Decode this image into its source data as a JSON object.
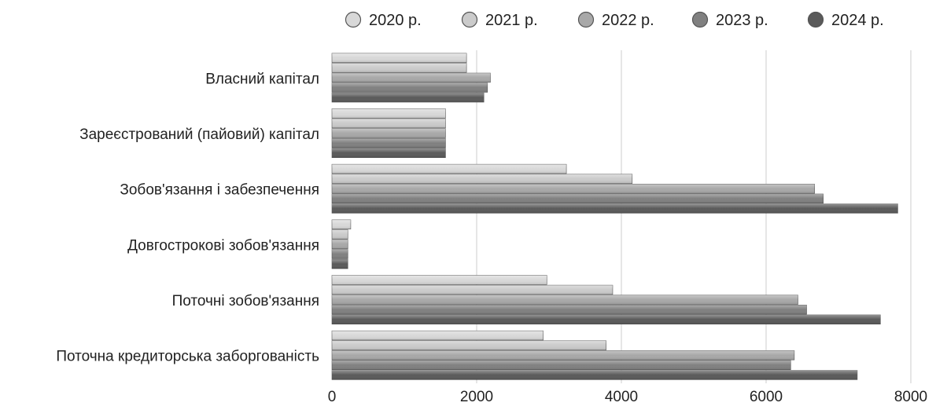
{
  "chart_data": {
    "type": "bar",
    "orientation": "horizontal",
    "title": "",
    "xlabel": "",
    "ylabel": "",
    "xlim": [
      0,
      8000
    ],
    "x_ticks": [
      "0",
      "2000",
      "4000",
      "6000",
      "8000"
    ],
    "x_tick_values": [
      0,
      2000,
      4000,
      6000,
      8000
    ],
    "grid": true,
    "legend_position": "top",
    "categories": [
      "Власний капітал",
      "Зареєстрований (пайовий) капітал",
      "Зобов'язання і забезпечення",
      "Довгострокові зобов'язання",
      "Поточні зобов'язання",
      "Поточна кредиторська заборгованість"
    ],
    "series": [
      {
        "name": "2020 р.",
        "color": "#d8d8d8",
        "values": [
          1860,
          1570,
          3240,
          260,
          2970,
          2920
        ]
      },
      {
        "name": "2021 р.",
        "color": "#cbcbcb",
        "values": [
          1860,
          1570,
          4150,
          220,
          3880,
          3790
        ]
      },
      {
        "name": "2022 р.",
        "color": "#a8a8a8",
        "values": [
          2190,
          1570,
          6670,
          220,
          6440,
          6390
        ]
      },
      {
        "name": "2023 р.",
        "color": "#808080",
        "values": [
          2150,
          1570,
          6790,
          220,
          6560,
          6340
        ]
      },
      {
        "name": "2024 р.",
        "color": "#5a5a5a",
        "values": [
          2100,
          1570,
          7820,
          220,
          7580,
          7260
        ]
      }
    ]
  }
}
